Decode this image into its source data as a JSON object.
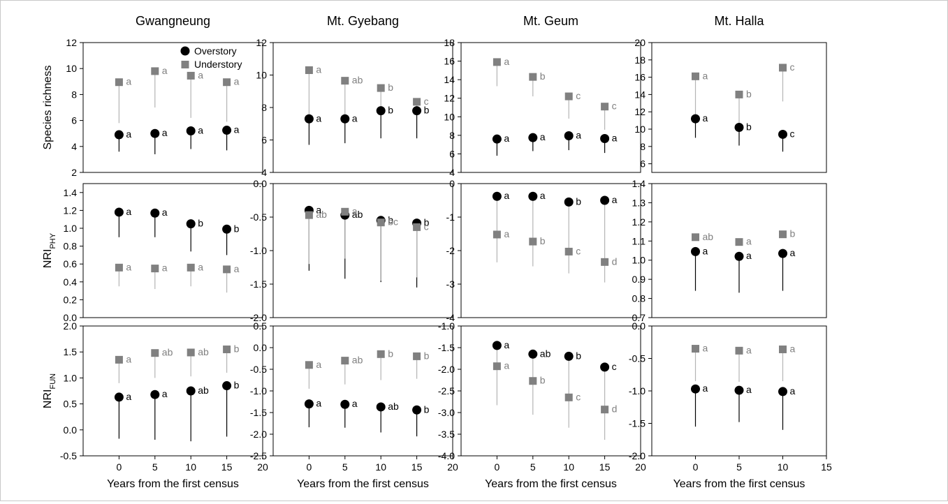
{
  "figure": {
    "x_axis_title": "Years from the first census",
    "legend": {
      "overstory": "Overstory",
      "understory": "Understory"
    },
    "colors": {
      "overstory": "#000000",
      "understory": "#808080",
      "whisker_under": "#b4b4b4"
    },
    "row_labels": [
      {
        "main": "Species richness",
        "sub": ""
      },
      {
        "main": "NRI",
        "sub": "PHY"
      },
      {
        "main": "NRI",
        "sub": "FUN"
      }
    ],
    "sites": [
      "Gwangneung",
      "Mt. Gyebang",
      "Mt. Geum",
      "Mt. Halla"
    ]
  },
  "chart_data": [
    {
      "type": "scatter",
      "site": "Gwangneung",
      "metric": "Species richness",
      "xlim": [
        -5,
        20
      ],
      "xticks": [
        0,
        5,
        10,
        15,
        20
      ],
      "ylim": [
        2,
        12
      ],
      "yticks": [
        2,
        4,
        6,
        8,
        10,
        12
      ],
      "show_legend": true,
      "x": [
        0,
        5,
        10,
        15
      ],
      "series": [
        {
          "name": "Overstory",
          "values": [
            4.9,
            5.0,
            5.2,
            5.25
          ],
          "lower": [
            3.6,
            3.4,
            3.8,
            3.7
          ],
          "upper": null,
          "letters": [
            "a",
            "a",
            "a",
            "a"
          ]
        },
        {
          "name": "Understory",
          "values": [
            8.95,
            9.8,
            9.45,
            8.95
          ],
          "lower": [
            5.8,
            7.0,
            6.2,
            5.9
          ],
          "upper": null,
          "letters": [
            "a",
            "a",
            "a",
            "a"
          ]
        }
      ]
    },
    {
      "type": "scatter",
      "site": "Mt. Gyebang",
      "metric": "Species richness",
      "xlim": [
        -5,
        20
      ],
      "xticks": [
        0,
        5,
        10,
        15,
        20
      ],
      "ylim": [
        4,
        12
      ],
      "yticks": [
        4,
        6,
        8,
        10,
        12
      ],
      "x": [
        0,
        5,
        10,
        15
      ],
      "series": [
        {
          "name": "Overstory",
          "values": [
            7.3,
            7.3,
            7.8,
            7.8
          ],
          "lower": [
            5.7,
            5.8,
            6.1,
            6.1
          ],
          "upper": null,
          "letters": [
            "a",
            "a",
            "b",
            "b"
          ]
        },
        {
          "name": "Understory",
          "values": [
            10.3,
            9.65,
            9.2,
            8.35
          ],
          "lower": [
            7.3,
            7.3,
            7.8,
            7.8
          ],
          "upper": null,
          "letters": [
            "a",
            "ab",
            "b",
            "c"
          ]
        }
      ]
    },
    {
      "type": "scatter",
      "site": "Mt. Geum",
      "metric": "Species richness",
      "xlim": [
        -5,
        20
      ],
      "xticks": [
        0,
        5,
        10,
        15,
        20
      ],
      "ylim": [
        4,
        18
      ],
      "yticks": [
        4,
        6,
        8,
        10,
        12,
        14,
        16,
        18
      ],
      "x": [
        0,
        5,
        10,
        15
      ],
      "series": [
        {
          "name": "Overstory",
          "values": [
            7.6,
            7.75,
            7.95,
            7.65
          ],
          "lower": [
            5.8,
            6.3,
            6.4,
            6.1
          ],
          "upper": null,
          "letters": [
            "a",
            "a",
            "a",
            "a"
          ]
        },
        {
          "name": "Understory",
          "values": [
            15.9,
            14.3,
            12.2,
            11.1
          ],
          "lower": [
            13.3,
            12.2,
            9.8,
            8.6
          ],
          "upper": null,
          "letters": [
            "a",
            "b",
            "c",
            "c"
          ]
        }
      ]
    },
    {
      "type": "scatter",
      "site": "Mt. Halla",
      "metric": "Species richness",
      "xlim": [
        -5,
        15
      ],
      "xticks": [
        0,
        5,
        10,
        15
      ],
      "ylim": [
        5,
        20
      ],
      "yticks": [
        6,
        8,
        10,
        12,
        14,
        16,
        18,
        20
      ],
      "x": [
        0,
        5,
        10
      ],
      "series": [
        {
          "name": "Overstory",
          "values": [
            11.2,
            10.2,
            9.4
          ],
          "lower": [
            9.0,
            8.1,
            7.4
          ],
          "upper": null,
          "letters": [
            "a",
            "b",
            "c"
          ]
        },
        {
          "name": "Understory",
          "values": [
            16.1,
            14.0,
            17.1
          ],
          "lower": [
            11.2,
            10.2,
            13.2
          ],
          "upper": null,
          "letters": [
            "a",
            "b",
            "c"
          ]
        }
      ]
    },
    {
      "type": "scatter",
      "site": "Gwangneung",
      "metric": "NRI PHY",
      "xlim": [
        -5,
        20
      ],
      "xticks": [
        0,
        5,
        10,
        15,
        20
      ],
      "ylim": [
        0,
        1.5
      ],
      "yticks": [
        0,
        0.2,
        0.4,
        0.6,
        0.8,
        1.0,
        1.2,
        1.4
      ],
      "x": [
        0,
        5,
        10,
        15
      ],
      "series": [
        {
          "name": "Overstory",
          "values": [
            1.18,
            1.17,
            1.05,
            0.99
          ],
          "lower": [
            0.9,
            0.9,
            0.74,
            0.7
          ],
          "upper": null,
          "letters": [
            "a",
            "a",
            "b",
            "b"
          ]
        },
        {
          "name": "Understory",
          "values": [
            0.56,
            0.55,
            0.56,
            0.54
          ],
          "lower": [
            0.35,
            0.32,
            0.35,
            0.28
          ],
          "upper": null,
          "letters": [
            "a",
            "a",
            "a",
            "a"
          ]
        }
      ]
    },
    {
      "type": "scatter",
      "site": "Mt. Gyebang",
      "metric": "NRI PHY",
      "xlim": [
        -5,
        20
      ],
      "xticks": [
        0,
        5,
        10,
        15,
        20
      ],
      "ylim": [
        -2,
        0
      ],
      "yticks": [
        -2.0,
        -1.5,
        -1.0,
        -0.5,
        0.0
      ],
      "x": [
        0,
        5,
        10,
        15
      ],
      "series": [
        {
          "name": "Overstory",
          "values": [
            -0.4,
            -0.47,
            -0.55,
            -0.59
          ],
          "lower": [
            -1.3,
            -1.42,
            -1.47,
            -1.55
          ],
          "upper": null,
          "letters": [
            "a",
            "ab",
            "b",
            "b"
          ]
        },
        {
          "name": "Understory",
          "values": [
            -0.47,
            -0.42,
            -0.58,
            -0.65
          ],
          "lower": [
            -1.2,
            -1.12,
            -1.45,
            -1.4
          ],
          "upper": null,
          "letters": [
            "ab",
            "a",
            "bc",
            "c"
          ]
        }
      ]
    },
    {
      "type": "scatter",
      "site": "Mt. Geum",
      "metric": "NRI PHY",
      "xlim": [
        -5,
        20
      ],
      "xticks": [
        0,
        5,
        10,
        15,
        20
      ],
      "ylim": [
        -4,
        0
      ],
      "yticks": [
        -4,
        -3,
        -2,
        -1,
        0
      ],
      "x": [
        0,
        5,
        10,
        15
      ],
      "series": [
        {
          "name": "Overstory",
          "values": [
            -0.38,
            -0.38,
            -0.55,
            -0.5
          ],
          "lower": null,
          "upper": null,
          "letters": [
            "a",
            "a",
            "b",
            "a"
          ]
        },
        {
          "name": "Understory",
          "values": [
            -1.52,
            -1.73,
            -2.03,
            -2.34
          ],
          "lower": [
            -2.35,
            -2.47,
            -2.68,
            -2.95
          ],
          "upper": [
            -0.38,
            -0.38,
            -0.55,
            -0.5
          ],
          "letters": [
            "a",
            "b",
            "c",
            "d"
          ]
        }
      ]
    },
    {
      "type": "scatter",
      "site": "Mt. Halla",
      "metric": "NRI PHY",
      "xlim": [
        -5,
        15
      ],
      "xticks": [
        0,
        5,
        10,
        15
      ],
      "ylim": [
        0.7,
        1.4
      ],
      "yticks": [
        0.7,
        0.8,
        0.9,
        1.0,
        1.1,
        1.2,
        1.3,
        1.4
      ],
      "x": [
        0,
        5,
        10
      ],
      "series": [
        {
          "name": "Overstory",
          "values": [
            1.045,
            1.02,
            1.035
          ],
          "lower": [
            0.84,
            0.83,
            0.84
          ],
          "upper": null,
          "letters": [
            "a",
            "a",
            "a"
          ]
        },
        {
          "name": "Understory",
          "values": [
            1.12,
            1.095,
            1.135
          ],
          "lower": null,
          "upper": null,
          "letters": [
            "ab",
            "a",
            "b"
          ]
        }
      ]
    },
    {
      "type": "scatter",
      "site": "Gwangneung",
      "metric": "NRI FUN",
      "xlim": [
        -5,
        20
      ],
      "xticks": [
        0,
        5,
        10,
        15,
        20
      ],
      "ylim": [
        -0.5,
        2.0
      ],
      "yticks": [
        -0.5,
        0.0,
        0.5,
        1.0,
        1.5,
        2.0
      ],
      "x": [
        0,
        5,
        10,
        15
      ],
      "series": [
        {
          "name": "Overstory",
          "values": [
            0.63,
            0.68,
            0.75,
            0.85
          ],
          "lower": [
            -0.17,
            -0.19,
            -0.22,
            -0.13
          ],
          "upper": null,
          "letters": [
            "a",
            "a",
            "ab",
            "b"
          ]
        },
        {
          "name": "Understory",
          "values": [
            1.35,
            1.48,
            1.49,
            1.55
          ],
          "lower": [
            0.9,
            1.0,
            1.03,
            1.1
          ],
          "upper": null,
          "letters": [
            "a",
            "ab",
            "ab",
            "b"
          ]
        }
      ]
    },
    {
      "type": "scatter",
      "site": "Mt. Gyebang",
      "metric": "NRI FUN",
      "xlim": [
        -5,
        20
      ],
      "xticks": [
        0,
        5,
        10,
        15,
        20
      ],
      "ylim": [
        -2.5,
        0.5
      ],
      "yticks": [
        -2.5,
        -2.0,
        -1.5,
        -1.0,
        -0.5,
        0.0,
        0.5
      ],
      "x": [
        0,
        5,
        10,
        15
      ],
      "series": [
        {
          "name": "Overstory",
          "values": [
            -1.3,
            -1.31,
            -1.37,
            -1.44
          ],
          "lower": [
            -1.84,
            -1.85,
            -1.96,
            -2.05
          ],
          "upper": null,
          "letters": [
            "a",
            "a",
            "ab",
            "b"
          ]
        },
        {
          "name": "Understory",
          "values": [
            -0.4,
            -0.3,
            -0.15,
            -0.2
          ],
          "lower": [
            -0.95,
            -0.85,
            -0.75,
            -0.72
          ],
          "upper": null,
          "letters": [
            "a",
            "ab",
            "b",
            "b"
          ]
        }
      ]
    },
    {
      "type": "scatter",
      "site": "Mt. Geum",
      "metric": "NRI FUN",
      "xlim": [
        -5,
        20
      ],
      "xticks": [
        0,
        5,
        10,
        15,
        20
      ],
      "ylim": [
        -4,
        -1
      ],
      "yticks": [
        -4.0,
        -3.5,
        -3.0,
        -2.5,
        -2.0,
        -1.5,
        -1.0
      ],
      "x": [
        0,
        5,
        10,
        15
      ],
      "series": [
        {
          "name": "Overstory",
          "values": [
            -1.45,
            -1.65,
            -1.7,
            -1.95
          ],
          "lower": null,
          "upper": null,
          "letters": [
            "a",
            "ab",
            "b",
            "c"
          ]
        },
        {
          "name": "Understory",
          "values": [
            -1.93,
            -2.27,
            -2.65,
            -2.93
          ],
          "lower": [
            -2.83,
            -3.05,
            -3.35,
            -3.63
          ],
          "upper": [
            -1.45,
            -1.65,
            -1.7,
            -1.95
          ],
          "letters": [
            "a",
            "b",
            "c",
            "d"
          ]
        }
      ]
    },
    {
      "type": "scatter",
      "site": "Mt. Halla",
      "metric": "NRI FUN",
      "xlim": [
        -5,
        15
      ],
      "xticks": [
        0,
        5,
        10,
        15
      ],
      "ylim": [
        -2,
        0
      ],
      "yticks": [
        -2.0,
        -1.5,
        -1.0,
        -0.5,
        0.0
      ],
      "x": [
        0,
        5,
        10
      ],
      "series": [
        {
          "name": "Overstory",
          "values": [
            -0.97,
            -0.99,
            -1.01
          ],
          "lower": [
            -1.55,
            -1.48,
            -1.6
          ],
          "upper": null,
          "letters": [
            "a",
            "a",
            "a"
          ]
        },
        {
          "name": "Understory",
          "values": [
            -0.35,
            -0.38,
            -0.36
          ],
          "lower": [
            -0.85,
            -0.86,
            -0.85
          ],
          "upper": null,
          "letters": [
            "a",
            "a",
            "a"
          ]
        }
      ]
    }
  ]
}
